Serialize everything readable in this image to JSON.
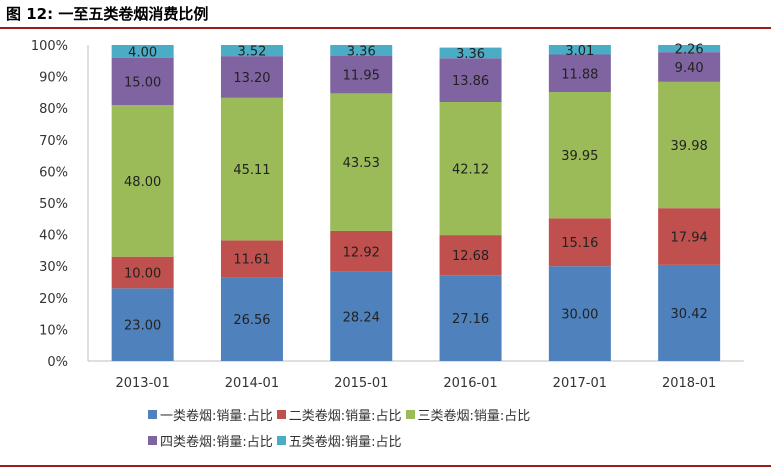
{
  "title": "图 12: 一至五类卷烟消费比例",
  "chart_data": {
    "type": "stacked-bar",
    "title": "图 12: 一至五类卷烟消费比例",
    "categories": [
      "2013-01",
      "2014-01",
      "2015-01",
      "2016-01",
      "2017-01",
      "2018-01"
    ],
    "ylim": [
      0,
      100
    ],
    "yticks": [
      "0%",
      "10%",
      "20%",
      "30%",
      "40%",
      "50%",
      "60%",
      "70%",
      "80%",
      "90%",
      "100%"
    ],
    "grid": false,
    "legend_position": "bottom",
    "series": [
      {
        "name": "一类卷烟:销量:占比",
        "color": "#4f81bd",
        "values": [
          23.0,
          26.56,
          28.24,
          27.16,
          30.0,
          30.42
        ]
      },
      {
        "name": "二类卷烟:销量:占比",
        "color": "#c0504d",
        "values": [
          10.0,
          11.61,
          12.92,
          12.68,
          15.16,
          17.94
        ]
      },
      {
        "name": "三类卷烟:销量:占比",
        "color": "#9bbb59",
        "values": [
          48.0,
          45.11,
          43.53,
          42.12,
          39.95,
          39.98
        ]
      },
      {
        "name": "四类卷烟:销量:占比",
        "color": "#8064a2",
        "values": [
          15.0,
          13.2,
          11.95,
          13.86,
          11.88,
          9.4
        ]
      },
      {
        "name": "五类卷烟:销量:占比",
        "color": "#4bacc6",
        "values": [
          4.0,
          3.52,
          3.36,
          3.36,
          3.01,
          2.26
        ]
      }
    ],
    "data_label_format": "2 decimals"
  }
}
